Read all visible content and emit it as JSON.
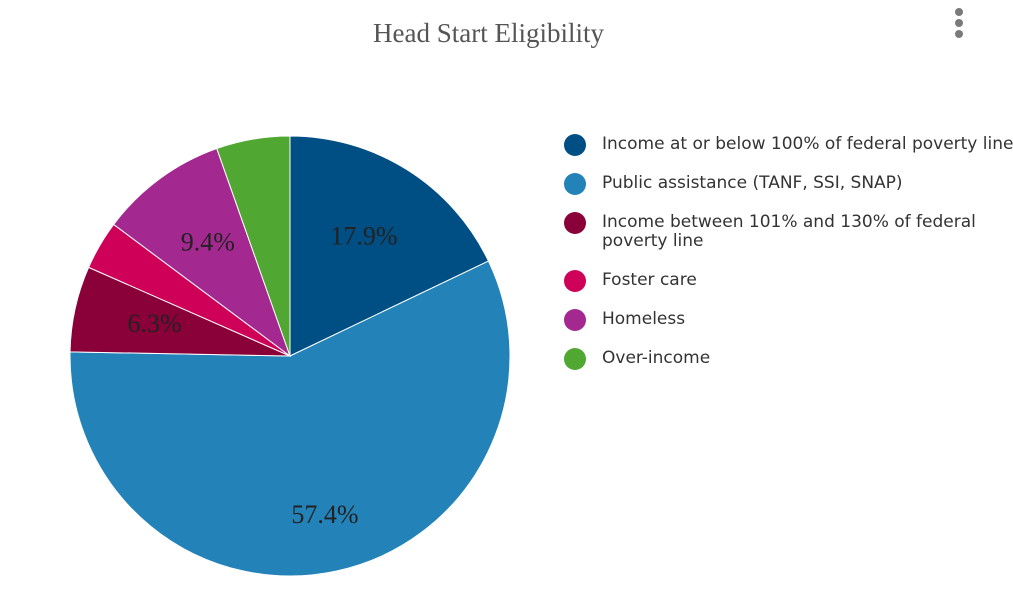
{
  "chart_data": {
    "type": "pie",
    "title": "Head Start Eligibility",
    "legend_position": "right",
    "series": [
      {
        "name": "Income at or below 100% of federal poverty line",
        "value": 17.9,
        "color": "#004f84",
        "label": "17.9%"
      },
      {
        "name": "Public assistance (TANF, SSI, SNAP)",
        "value": 57.4,
        "color": "#2383b8",
        "label": "57.4%"
      },
      {
        "name": "Income between 101% and 130% of federal poverty line",
        "value": 6.3,
        "color": "#8a0038",
        "label": "6.3%"
      },
      {
        "name": "Foster care",
        "value": 3.6,
        "color": "#cf0058",
        "label": ""
      },
      {
        "name": "Homeless",
        "value": 9.4,
        "color": "#a3288f",
        "label": "9.4%"
      },
      {
        "name": "Over-income",
        "value": 5.4,
        "color": "#50a832",
        "label": ""
      }
    ],
    "legend_labels": [
      [
        "Income at or below 100% of federal poverty line"
      ],
      [
        "Public assistance (TANF, SSI, SNAP)"
      ],
      [
        "Income between 101% and 130% of federal",
        "poverty line"
      ],
      [
        "Foster care"
      ],
      [
        "Homeless"
      ],
      [
        "Over-income"
      ]
    ]
  },
  "menu": {
    "icon": "more-vertical-icon"
  }
}
